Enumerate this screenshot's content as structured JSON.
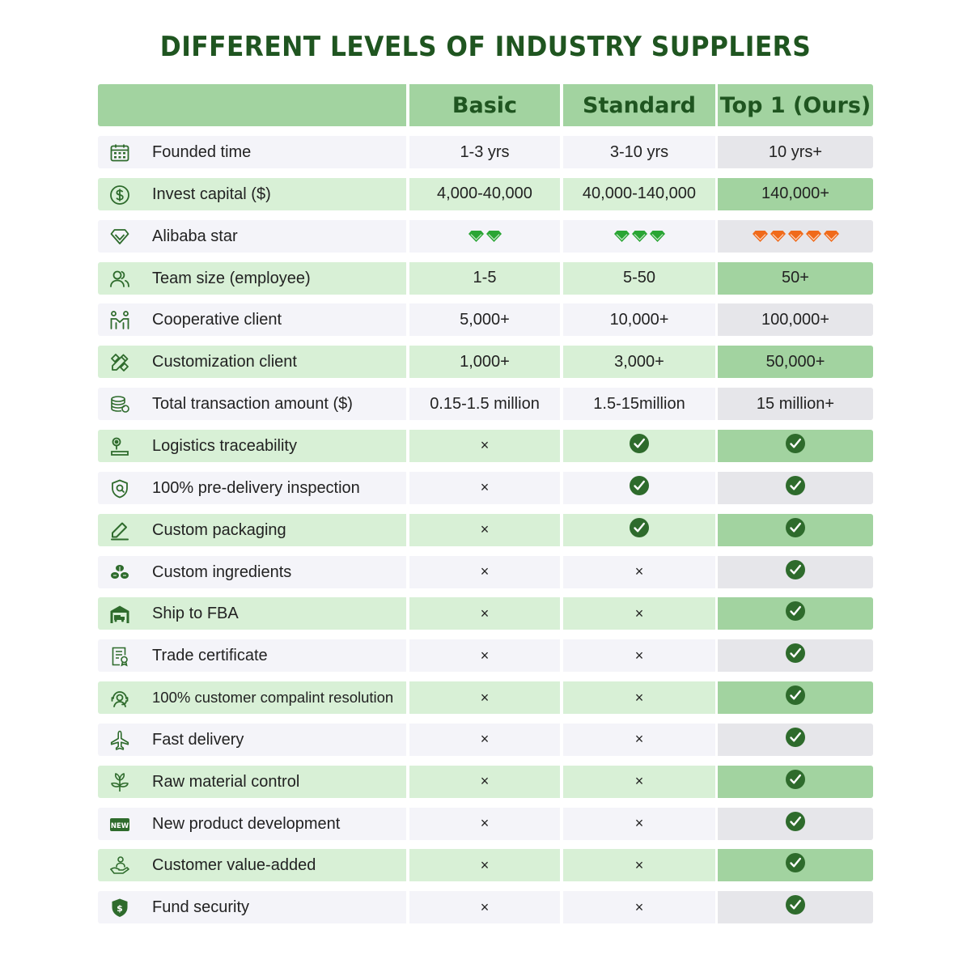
{
  "title": "DIFFERENT LEVELS OF INDUSTRY SUPPLIERS",
  "colors": {
    "title": "#1f5520",
    "header_bg": "#a2d3a0",
    "row_green": "#d8f0d6",
    "row_grey": "#f4f4f9",
    "highlight_green": "#a2d3a0",
    "highlight_grey": "#e6e6ea",
    "gem_green": "#2aa534",
    "gem_orange": "#f06a1a",
    "check": "#2e6b2c"
  },
  "header": {
    "basic": "Basic",
    "standard": "Standard",
    "top": "Top 1 (Ours)"
  },
  "rows": [
    {
      "icon": "calendar-icon",
      "label": "Founded time",
      "basic": "1-3 yrs",
      "standard": "3-10 yrs",
      "top": "10 yrs+"
    },
    {
      "icon": "dollar-icon",
      "label": "Invest capital ($)",
      "basic": "4,000-40,000",
      "standard": "40,000-140,000",
      "top": "140,000+"
    },
    {
      "icon": "diamond-icon",
      "label": "Alibaba star",
      "basic_stars": 2,
      "standard_stars": 3,
      "top_stars": 5
    },
    {
      "icon": "team-icon",
      "label": "Team size (employee)",
      "basic": "1-5",
      "standard": "5-50",
      "top": "50+"
    },
    {
      "icon": "handshake-icon",
      "label": "Cooperative client",
      "basic": "5,000+",
      "standard": "10,000+",
      "top": "100,000+"
    },
    {
      "icon": "pencil-ruler-icon",
      "label": "Customization client",
      "basic": "1,000+",
      "standard": "3,000+",
      "top": "50,000+"
    },
    {
      "icon": "coins-icon",
      "label": "Total transaction amount ($)",
      "basic": "0.15-1.5 million",
      "standard": "1.5-15million",
      "top": "15 million+"
    },
    {
      "icon": "location-icon",
      "label": "Logistics traceability",
      "basic_check": false,
      "standard_check": true,
      "top_check": true
    },
    {
      "icon": "shield-check-icon",
      "label": "100% pre-delivery inspection",
      "basic_check": false,
      "standard_check": true,
      "top_check": true
    },
    {
      "icon": "edit-icon",
      "label": "Custom packaging",
      "basic_check": false,
      "standard_check": true,
      "top_check": true
    },
    {
      "icon": "leaves-icon",
      "label": "Custom ingredients",
      "basic_check": false,
      "standard_check": false,
      "top_check": true
    },
    {
      "icon": "warehouse-icon",
      "label": "Ship to FBA",
      "basic_check": false,
      "standard_check": false,
      "top_check": true
    },
    {
      "icon": "certificate-icon",
      "label": "Trade certificate",
      "basic_check": false,
      "standard_check": false,
      "top_check": true
    },
    {
      "icon": "support-icon",
      "label": "100% customer compalint resolution",
      "basic_check": false,
      "standard_check": false,
      "top_check": true
    },
    {
      "icon": "airplane-icon",
      "label": "Fast delivery",
      "basic_check": false,
      "standard_check": false,
      "top_check": true
    },
    {
      "icon": "sprout-icon",
      "label": "Raw material control",
      "basic_check": false,
      "standard_check": false,
      "top_check": true
    },
    {
      "icon": "new-badge-icon",
      "label": "New product development",
      "basic_check": false,
      "standard_check": false,
      "top_check": true
    },
    {
      "icon": "hand-user-icon",
      "label": "Customer value-added",
      "basic_check": false,
      "standard_check": false,
      "top_check": true
    },
    {
      "icon": "shield-dollar-icon",
      "label": "Fund security",
      "basic_check": false,
      "standard_check": false,
      "top_check": true
    }
  ],
  "new_badge_text": "NEW",
  "cross_symbol": "×"
}
